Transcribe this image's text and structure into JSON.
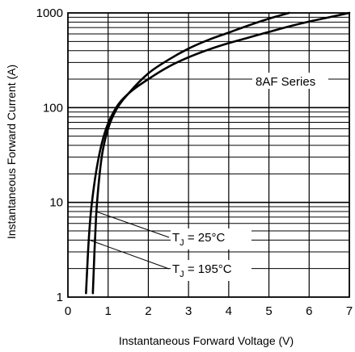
{
  "chart_data": {
    "type": "line",
    "title": "",
    "xlabel": "Instantaneous Forward Voltage (V)",
    "ylabel": "Instantaneous Forward Current (A)",
    "xlim": [
      0,
      7
    ],
    "ylim": [
      1,
      1000
    ],
    "y_scale": "log",
    "grid": true,
    "x_ticks": [
      "0",
      "1",
      "2",
      "3",
      "4",
      "5",
      "6",
      "7"
    ],
    "y_ticks": [
      "1",
      "10",
      "100",
      "1000"
    ],
    "series_label": "8AF Series",
    "series": [
      {
        "name": "TJ = 25°C",
        "label_main": "T",
        "label_sub": "J",
        "label_rest": " = 25°C",
        "x": [
          0.62,
          0.66,
          0.7,
          0.76,
          0.85,
          1.0,
          1.2,
          1.5,
          2.0,
          2.5,
          3.0,
          3.5,
          4.0,
          4.5,
          5.0,
          5.5
        ],
        "y": [
          1.1,
          3,
          7,
          15,
          32,
          60,
          95,
          140,
          230,
          320,
          420,
          520,
          620,
          740,
          870,
          1000
        ]
      },
      {
        "name": "TJ = 195°C",
        "label_main": "T",
        "label_sub": "J",
        "label_rest": " = 195°C",
        "x": [
          0.45,
          0.5,
          0.56,
          0.65,
          0.78,
          0.95,
          1.2,
          1.5,
          2.0,
          2.5,
          3.0,
          3.5,
          4.0,
          4.5,
          5.0,
          5.5,
          6.0,
          6.5,
          7.0
        ],
        "y": [
          1.1,
          3,
          7,
          15,
          32,
          60,
          100,
          140,
          200,
          270,
          340,
          410,
          480,
          550,
          630,
          720,
          810,
          900,
          1000
        ]
      }
    ]
  }
}
